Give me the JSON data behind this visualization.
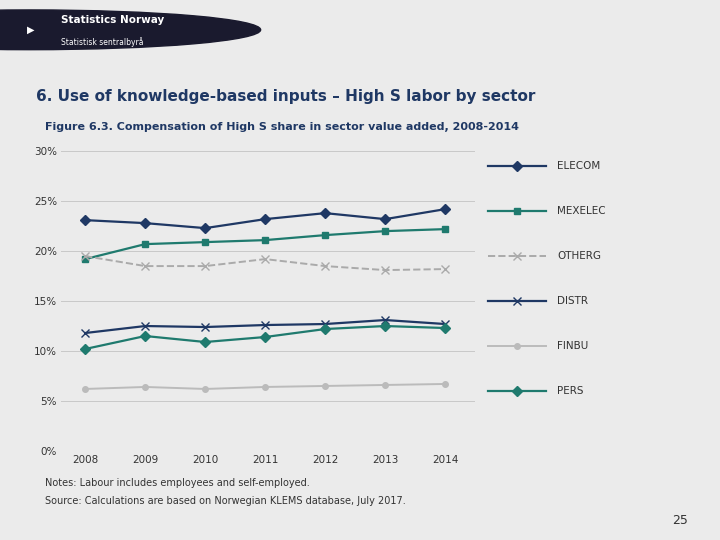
{
  "title_main": "6. Use of knowledge-based inputs – High S labor by sector",
  "title_sub": "Figure 6.3. Compensation of High S share in sector value added, 2008-2014",
  "years": [
    2008,
    2009,
    2010,
    2011,
    2012,
    2013,
    2014
  ],
  "series": {
    "ELECOM": {
      "values": [
        23.1,
        22.8,
        22.3,
        23.2,
        23.8,
        23.2,
        24.2
      ],
      "color": "#1F3864",
      "marker": "D",
      "markersize": 5,
      "linewidth": 1.6,
      "linestyle": "-"
    },
    "MEXELEC": {
      "values": [
        19.2,
        20.7,
        20.9,
        21.1,
        21.6,
        22.0,
        22.2
      ],
      "color": "#1F7A6E",
      "marker": "s",
      "markersize": 5,
      "linewidth": 1.6,
      "linestyle": "-"
    },
    "OTHERG": {
      "values": [
        19.5,
        18.5,
        18.5,
        19.2,
        18.5,
        18.1,
        18.2
      ],
      "color": "#AAAAAA",
      "marker": "x",
      "markersize": 6,
      "linewidth": 1.4,
      "linestyle": "--"
    },
    "DISTR": {
      "values": [
        11.8,
        12.5,
        12.4,
        12.6,
        12.7,
        13.1,
        12.7
      ],
      "color": "#1F3864",
      "marker": "x",
      "markersize": 6,
      "linewidth": 1.6,
      "linestyle": "-"
    },
    "FINBU": {
      "values": [
        6.2,
        6.4,
        6.2,
        6.4,
        6.5,
        6.6,
        6.7
      ],
      "color": "#BBBBBB",
      "marker": "o",
      "markersize": 4,
      "linewidth": 1.4,
      "linestyle": "-"
    },
    "PERS": {
      "values": [
        10.2,
        11.5,
        10.9,
        11.4,
        12.2,
        12.5,
        12.3
      ],
      "color": "#1F7A6E",
      "marker": "D",
      "markersize": 5,
      "linewidth": 1.6,
      "linestyle": "-"
    }
  },
  "legend_order": [
    "ELECOM",
    "MEXELEC",
    "OTHERG",
    "DISTR",
    "FINBU",
    "PERS"
  ],
  "ylim": [
    0,
    30
  ],
  "yticks": [
    0,
    5,
    10,
    15,
    20,
    25,
    30
  ],
  "ytick_labels": [
    "0%",
    "5%",
    "10%",
    "15%",
    "20%",
    "25%",
    "30%"
  ],
  "bg_color": "#EBEBEB",
  "plot_bg_color": "#EBEBEB",
  "grid_color": "#C8C8C8",
  "header_color": "#8FAFC5",
  "title_color": "#1F3864",
  "notes_line1": "Notes: Labour includes employees and self-employed.",
  "notes_line2": "Source: Calculations are based on Norwegian KLEMS database, July 2017.",
  "page_number": "25"
}
